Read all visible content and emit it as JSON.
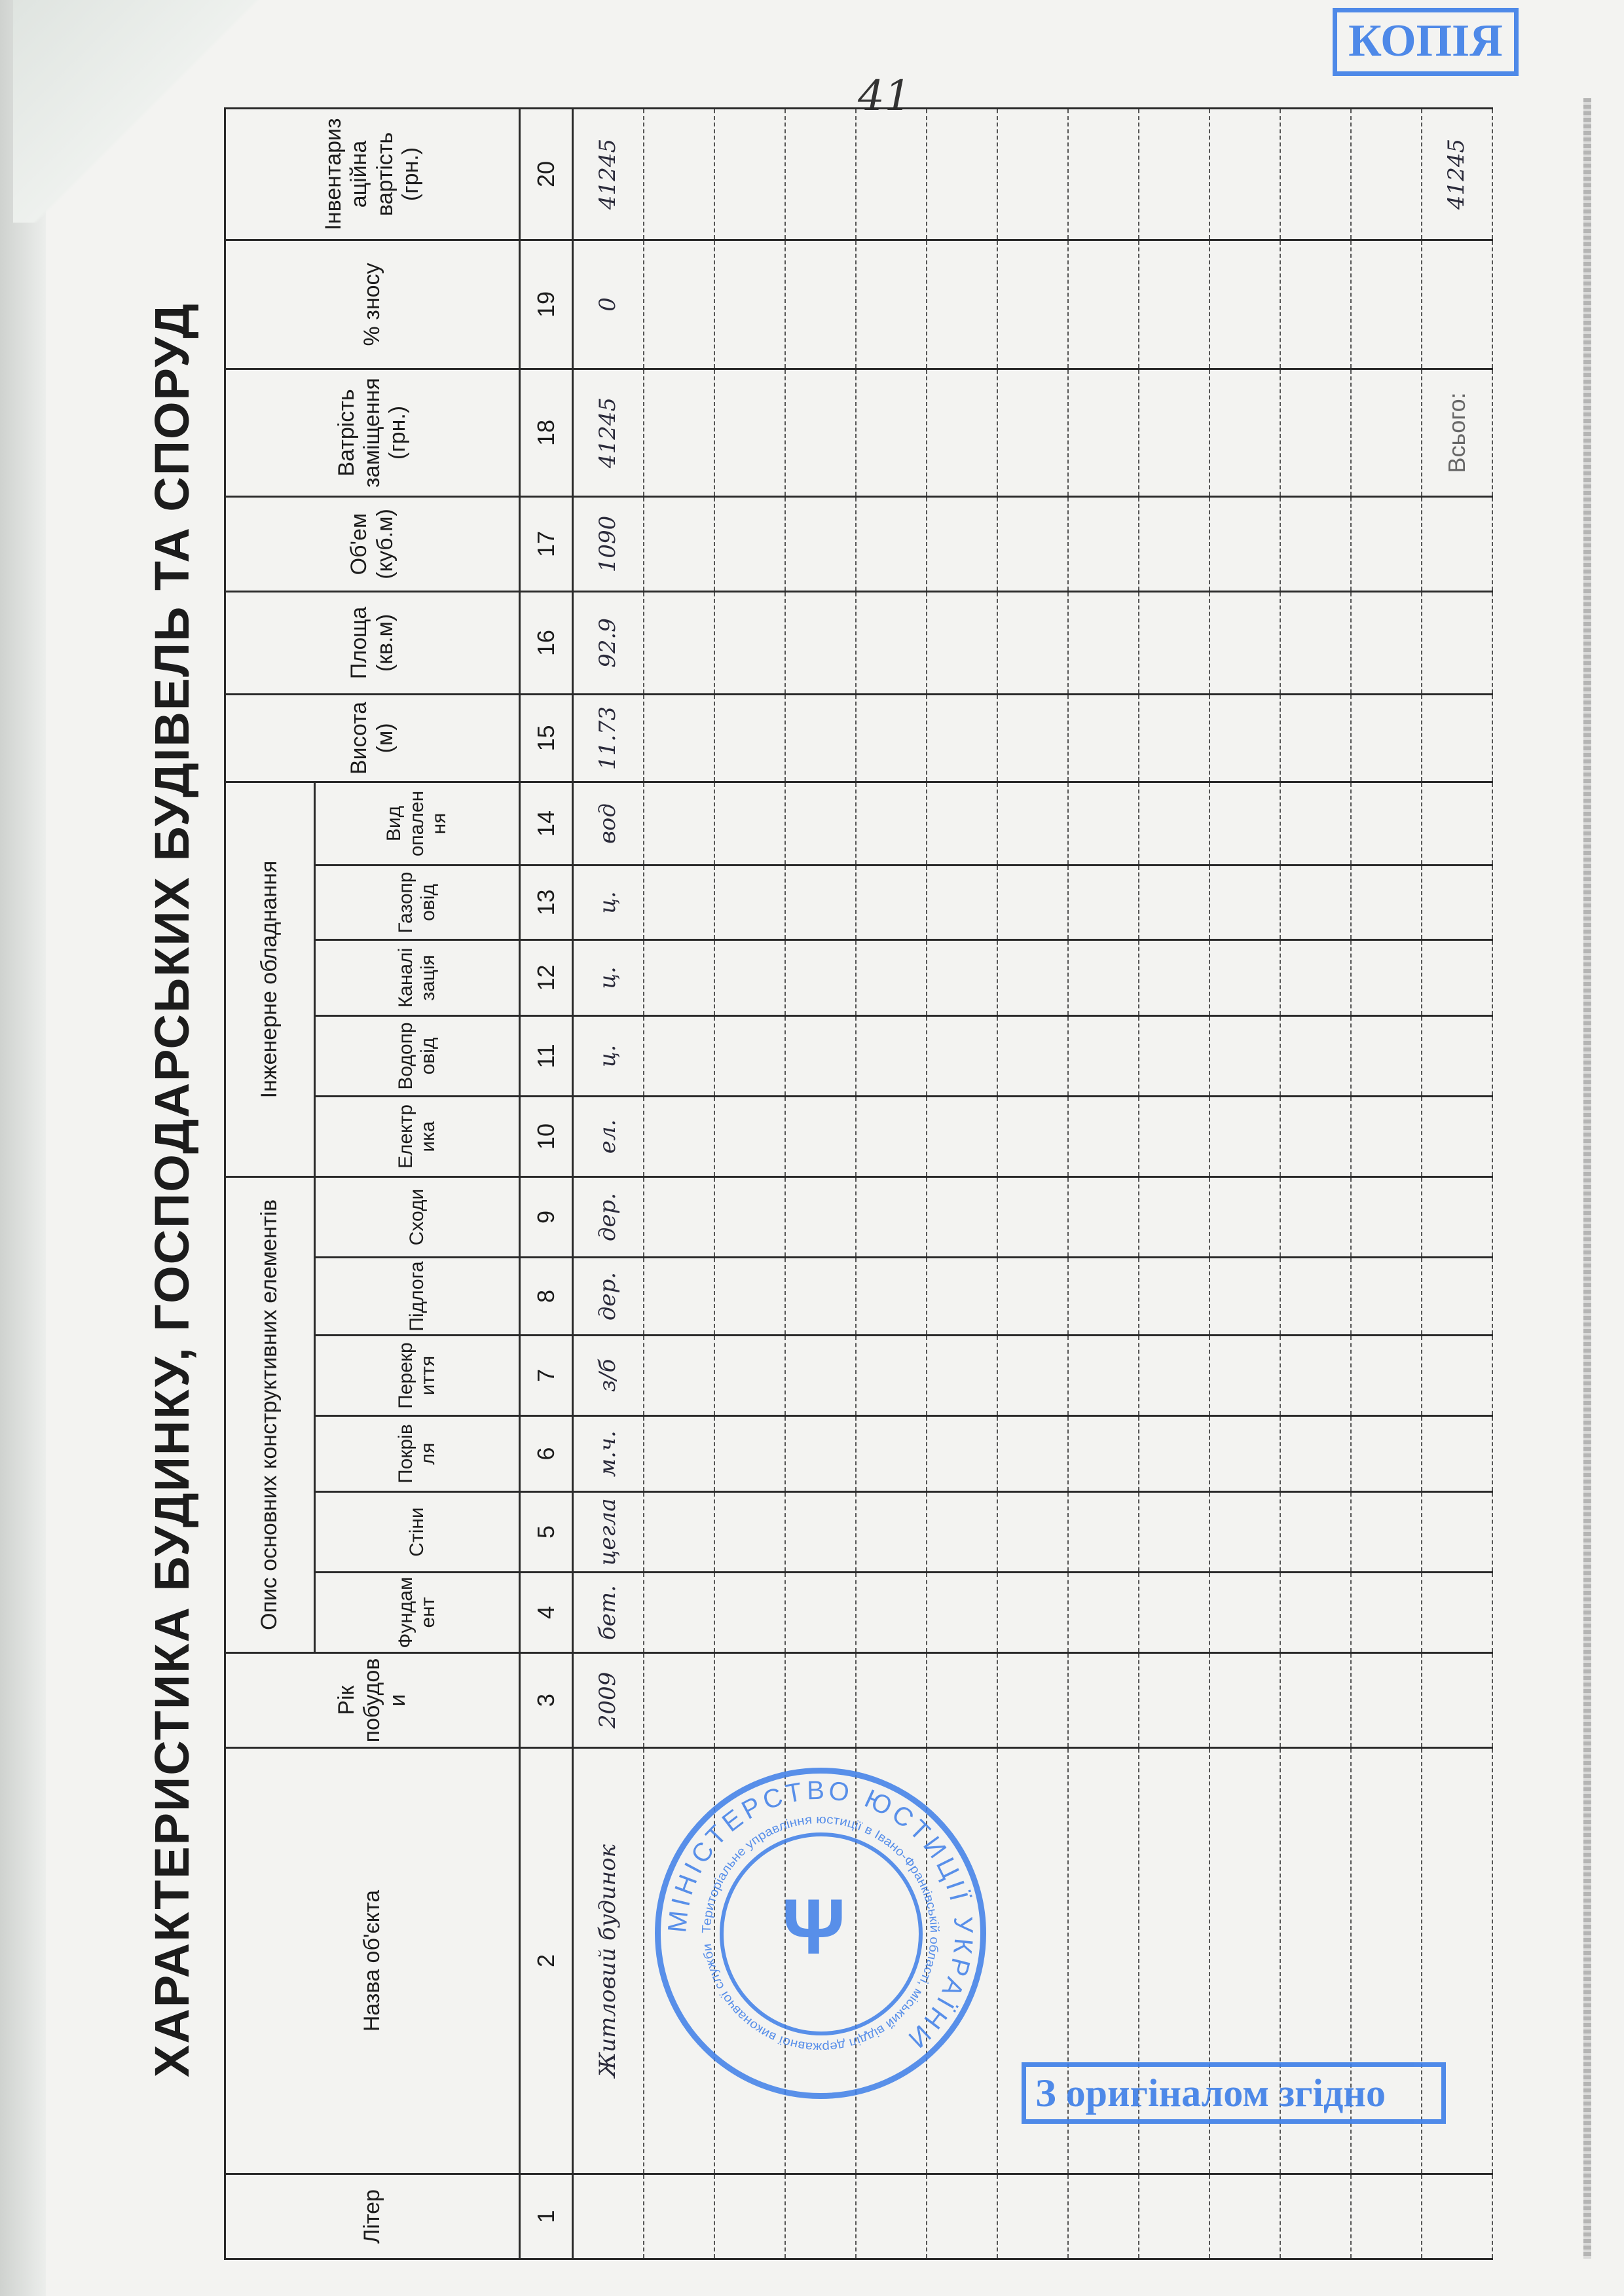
{
  "page_number": "41",
  "title": "ХАРАКТЕРИСТИКА БУДИНКУ, ГОСПОДАРСЬКИХ  БУДІВЕЛЬ ТА СПОРУД",
  "header": {
    "group_construction": "Опис основних конструктивних елементів",
    "group_engineering": "Інженерне обладнання",
    "columns": [
      "Літер",
      "Назва об'єкта",
      "Рік побудови",
      "Фундамент",
      "Стіни",
      "Покрівля",
      "Перекриття",
      "Підлога",
      "Сходи",
      "Електрика",
      "Водопровід",
      "Каналізація",
      "Газопровід",
      "Вид опалення",
      "Висота (м)",
      "Площа (кв.м)",
      "Об'ем (куб.м)",
      "Ватрість заміщення (грн.)",
      "% зносу",
      "Інвентаризаційна вартість (грн.)"
    ],
    "numbers": [
      "1",
      "2",
      "3",
      "4",
      "5",
      "6",
      "7",
      "8",
      "9",
      "10",
      "11",
      "12",
      "13",
      "14",
      "15",
      "16",
      "17",
      "18",
      "19",
      "20"
    ]
  },
  "rows": [
    [
      "",
      "Житловий будинок",
      "2009",
      "бет.",
      "цегла",
      "м.ч.",
      "з/б",
      "дер.",
      "дер.",
      "ел.",
      "ц.",
      "ц.",
      "ц.",
      "вод",
      "11.73",
      "92.9",
      "1090",
      "41245",
      "0",
      "41245"
    ]
  ],
  "empty_rows": 11,
  "total": {
    "label": "Всього:",
    "value": "41245"
  },
  "stamps": {
    "copy": "КОПІЯ",
    "original": "З оригіналом згідно",
    "round_outer": "МІНІСТЕРСТВО ЮСТИЦІЇ УКРАЇНИ",
    "round_middle": "Територіальне управління юстиції в Івано-Франківській області, міський відділ державної виконавчої служби"
  },
  "colors": {
    "stamp": "#3d7ee8",
    "ink": "#1c1c1c"
  }
}
